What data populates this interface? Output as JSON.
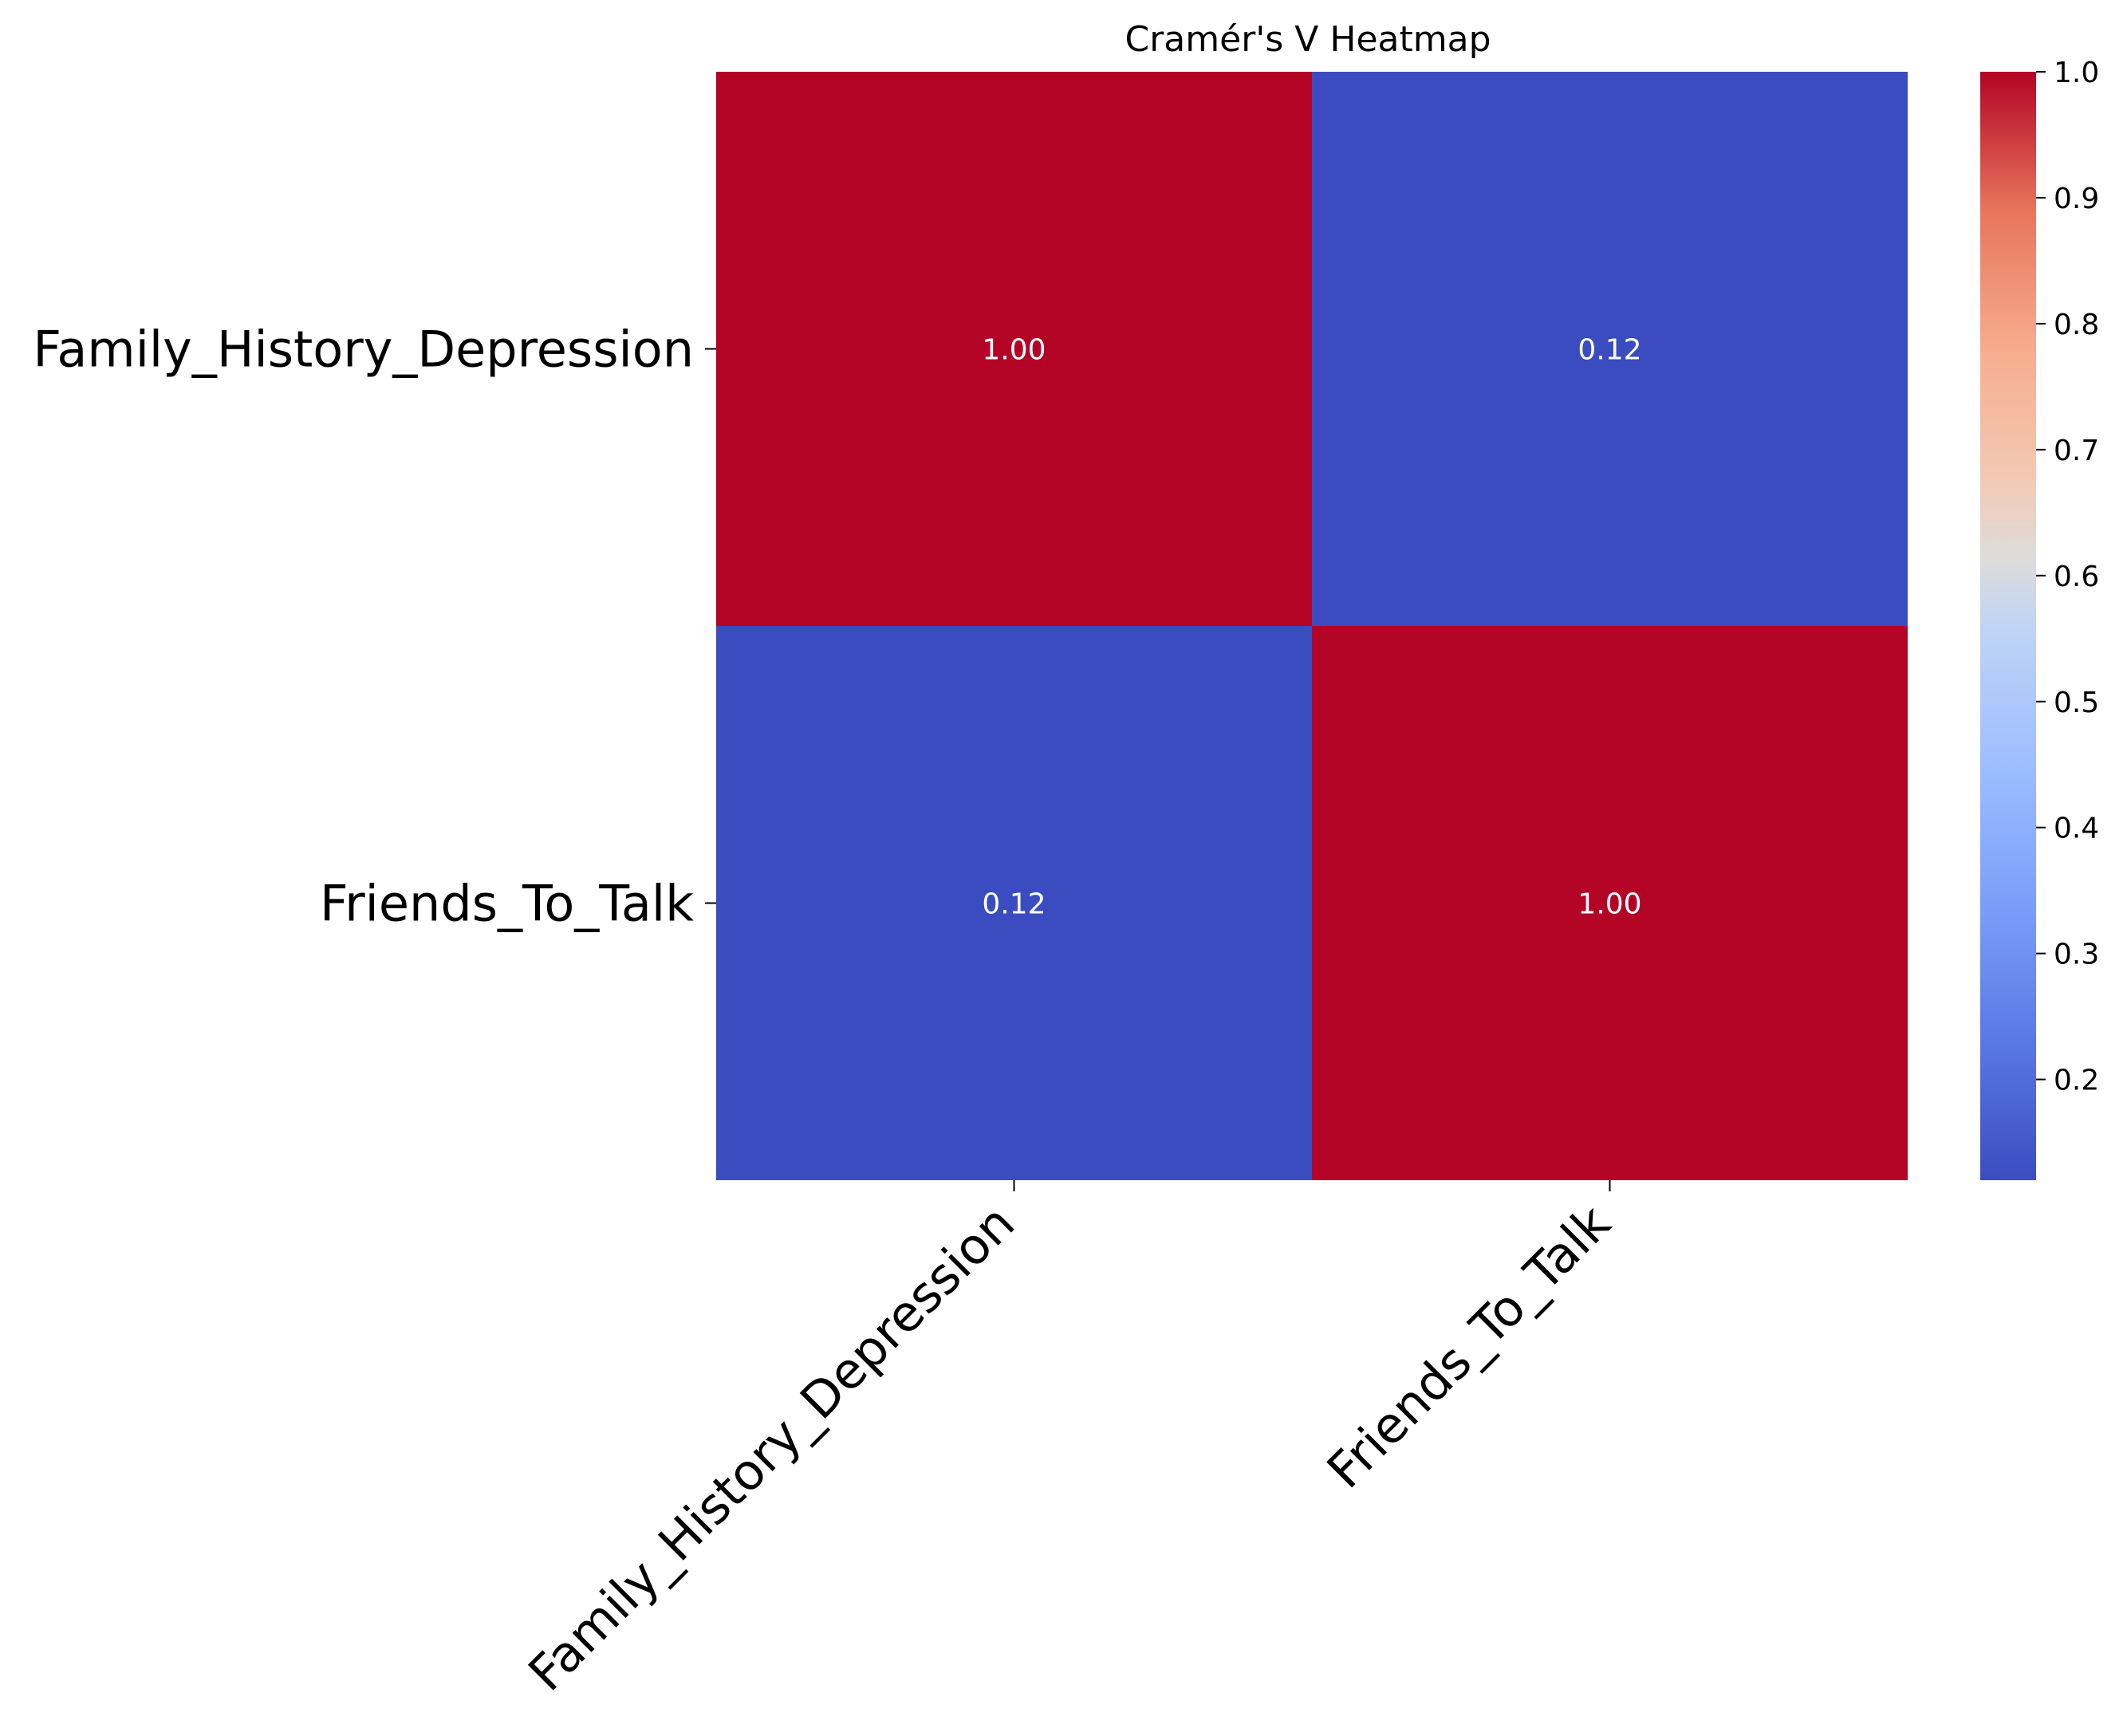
{
  "chart_data": {
    "type": "heatmap",
    "title": "Cramér's V Heatmap",
    "row_labels": [
      "Family_History_Depression",
      "Friends_To_Talk"
    ],
    "col_labels": [
      "Family_History_Depression",
      "Friends_To_Talk"
    ],
    "values": [
      [
        1.0,
        0.12
      ],
      [
        0.12,
        1.0
      ]
    ],
    "annotations": [
      [
        "1.00",
        "0.12"
      ],
      [
        "0.12",
        "1.00"
      ]
    ],
    "colormap": "coolwarm",
    "color_low": "#3b4cc0",
    "color_high": "#b40426",
    "colorbar": {
      "vmin": 0.12,
      "vmax": 1.0,
      "ticks": [
        0.2,
        0.3,
        0.4,
        0.5,
        0.6,
        0.7,
        0.8,
        0.9,
        1.0
      ],
      "tick_labels": [
        "0.2",
        "0.3",
        "0.4",
        "0.5",
        "0.6",
        "0.7",
        "0.8",
        "0.9",
        "1.0"
      ]
    },
    "grid": false,
    "xtick_rotation_deg": 45
  }
}
